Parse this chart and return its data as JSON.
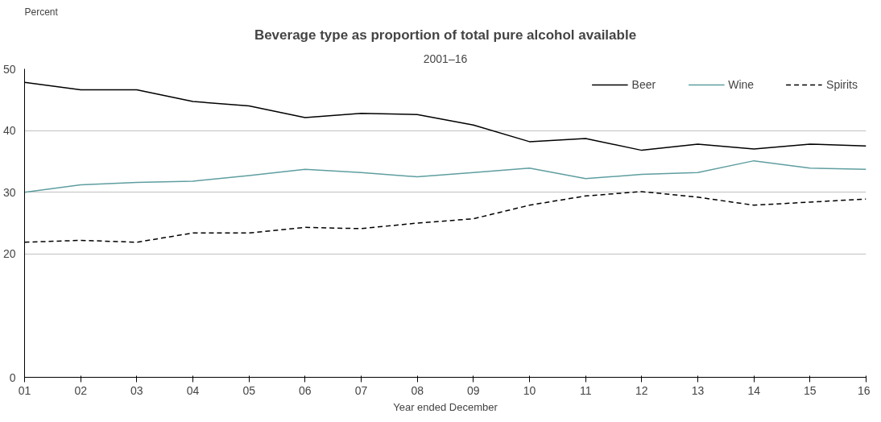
{
  "chart_data": {
    "type": "line",
    "title": "Beverage type as proportion of total pure alcohol available",
    "subtitle": "2001–16",
    "ylabel": "Percent",
    "xlabel": "Year ended December",
    "categories": [
      "01",
      "02",
      "03",
      "04",
      "05",
      "06",
      "07",
      "08",
      "09",
      "10",
      "11",
      "12",
      "13",
      "14",
      "15",
      "16"
    ],
    "series": [
      {
        "name": "Beer",
        "color": "#000000",
        "line_style": "solid",
        "values": [
          47.8,
          46.6,
          46.6,
          44.7,
          44.0,
          42.1,
          42.8,
          42.6,
          40.9,
          38.2,
          38.7,
          36.8,
          37.8,
          37.0,
          37.8,
          37.5
        ]
      },
      {
        "name": "Wine",
        "color": "#5f9ea0",
        "line_style": "solid",
        "values": [
          30.0,
          31.2,
          31.6,
          31.8,
          32.7,
          33.7,
          33.2,
          32.5,
          33.2,
          33.9,
          32.2,
          32.9,
          33.2,
          35.1,
          33.9,
          33.7
        ]
      },
      {
        "name": "Spirits",
        "color": "#000000",
        "line_style": "dashed",
        "values": [
          21.9,
          22.2,
          21.9,
          23.4,
          23.4,
          24.3,
          24.1,
          25.0,
          25.7,
          27.9,
          29.4,
          30.1,
          29.2,
          27.9,
          28.4,
          28.9
        ]
      }
    ],
    "ylim": [
      0,
      50
    ],
    "yticks": [
      0,
      20,
      30,
      40,
      50
    ],
    "grid": "y",
    "legend": "top right",
    "marker": "none"
  }
}
